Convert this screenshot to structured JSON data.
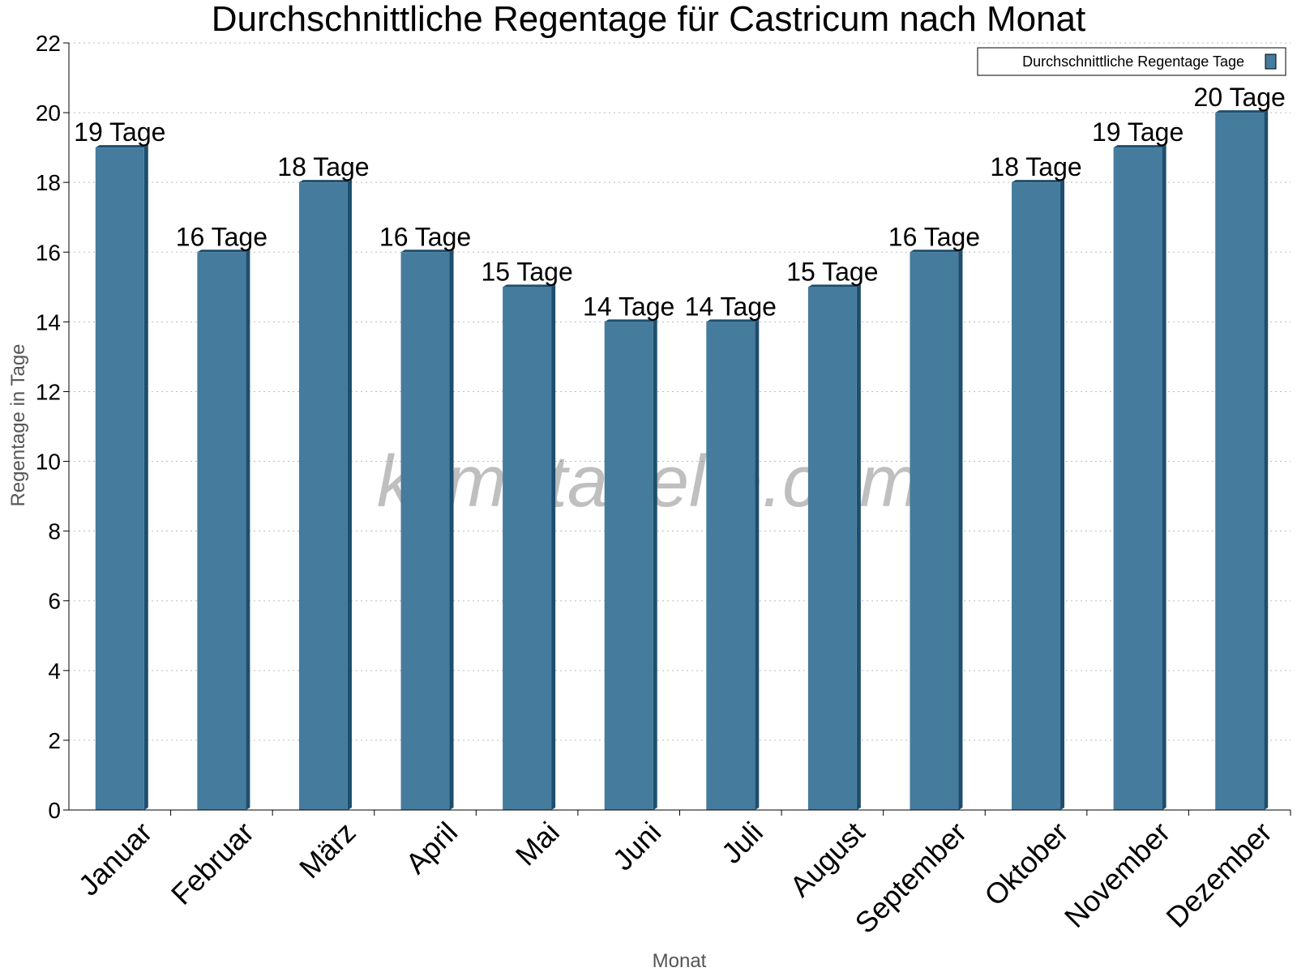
{
  "chart_data": {
    "type": "bar",
    "title": "Durchschnittliche Regentage für Castricum nach Monat",
    "xlabel": "Monat",
    "ylabel": "Regentage in Tage",
    "ylim": [
      0,
      22
    ],
    "yticks": [
      0,
      2,
      4,
      6,
      8,
      10,
      12,
      14,
      16,
      18,
      20,
      22
    ],
    "grid": true,
    "legend_position": "top-right",
    "categories": [
      "Januar",
      "Februar",
      "März",
      "April",
      "Mai",
      "Juni",
      "Juli",
      "August",
      "September",
      "Oktober",
      "November",
      "Dezember"
    ],
    "series": [
      {
        "name": "Durchschnittliche Regentage Tage",
        "values": [
          19,
          16,
          18,
          16,
          15,
          14,
          14,
          15,
          16,
          18,
          19,
          20
        ],
        "labels": [
          "19 Tage",
          "16 Tage",
          "18 Tage",
          "16 Tage",
          "15 Tage",
          "14 Tage",
          "14 Tage",
          "15 Tage",
          "16 Tage",
          "18 Tage",
          "19 Tage",
          "20 Tage"
        ],
        "color": "#457b9d",
        "shade_color": "#1d4e6e"
      }
    ]
  },
  "watermark": "klimatabelle.com"
}
